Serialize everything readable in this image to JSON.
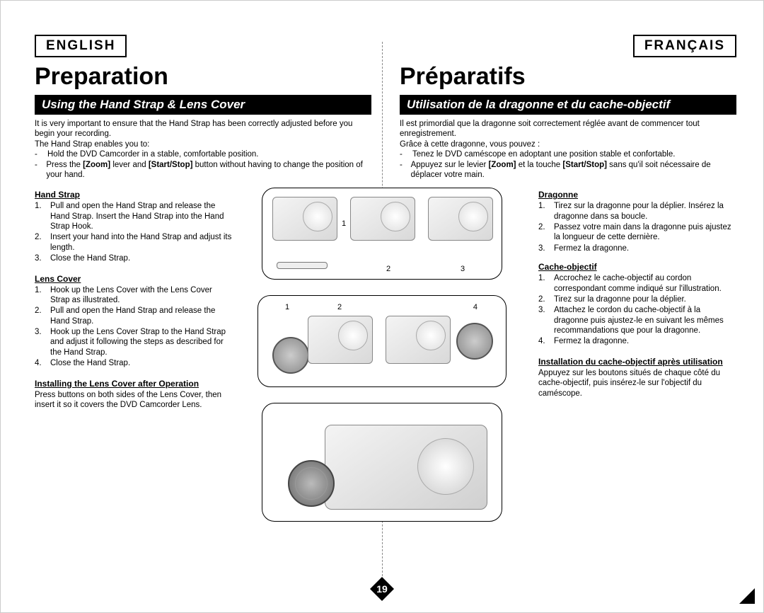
{
  "page_number": "19",
  "left": {
    "lang": "ENGLISH",
    "title": "Preparation",
    "bar": "Using the Hand Strap & Lens Cover",
    "intro_p1": "It is very important to ensure that the Hand Strap has been correctly adjusted before you begin your recording.",
    "intro_p2": "The Hand Strap enables you to:",
    "intro_li1": "Hold the DVD Camcorder in a stable, comfortable position.",
    "intro_li2_a": "Press the ",
    "intro_li2_b": "[Zoom]",
    "intro_li2_c": " lever and ",
    "intro_li2_d": "[Start/Stop]",
    "intro_li2_e": " button without having to change the position of your hand.",
    "s1_head": "Hand Strap",
    "s1_1": "Pull and open the Hand Strap and release the Hand Strap. Insert the Hand Strap into the Hand Strap Hook.",
    "s1_2": "Insert your hand into the Hand Strap and adjust its length.",
    "s1_3": "Close the Hand Strap.",
    "s2_head": "Lens Cover",
    "s2_1": "Hook up the Lens Cover with the Lens Cover Strap as illustrated.",
    "s2_2": "Pull and open the Hand Strap and release the Hand Strap.",
    "s2_3": "Hook up the Lens Cover Strap to the Hand Strap and adjust it following the steps as described for the Hand Strap.",
    "s2_4": "Close the Hand Strap.",
    "s3_head": "Installing the Lens Cover after Operation",
    "s3_text": "Press buttons on both sides of the Lens Cover, then insert it so it covers the DVD Camcorder Lens."
  },
  "right": {
    "lang": "FRANÇAIS",
    "title": "Préparatifs",
    "bar": "Utilisation de la dragonne et du cache-objectif",
    "intro_p1": "Il est primordial que la dragonne soit correctement réglée avant de commencer tout enregistrement.",
    "intro_p2": "Grâce à cette dragonne, vous pouvez :",
    "intro_li1": "Tenez le DVD caméscope en adoptant une position stable et confortable.",
    "intro_li2_a": "Appuyez sur le levier ",
    "intro_li2_b": "[Zoom]",
    "intro_li2_c": " et la touche ",
    "intro_li2_d": "[Start/Stop]",
    "intro_li2_e": " sans qu'il soit nécessaire de déplacer votre main.",
    "s1_head": "Dragonne",
    "s1_1": "Tirez sur la dragonne pour la déplier. Insérez la dragonne dans sa boucle.",
    "s1_2": "Passez votre main dans la dragonne puis ajustez la longueur de cette dernière.",
    "s1_3": "Fermez la dragonne.",
    "s2_head": "Cache-objectif",
    "s2_1": "Accrochez le cache-objectif au cordon correspondant comme indiqué sur l'illustration.",
    "s2_2": "Tirez sur la dragonne pour la déplier.",
    "s2_3": "Attachez le cordon du cache-objectif à la dragonne puis ajustez-le en suivant les mêmes recommandations que pour la dragonne.",
    "s2_4": "Fermez la dragonne.",
    "s3_head": "Installation du cache-objectif après utilisation",
    "s3_text": "Appuyez sur les boutons situés de chaque côté du cache-objectif, puis insérez-le sur l'objectif du caméscope."
  },
  "fig1": {
    "l1": "1",
    "l2": "2",
    "l3": "3"
  },
  "fig2": {
    "l1": "1",
    "l2": "2",
    "l4": "4"
  }
}
